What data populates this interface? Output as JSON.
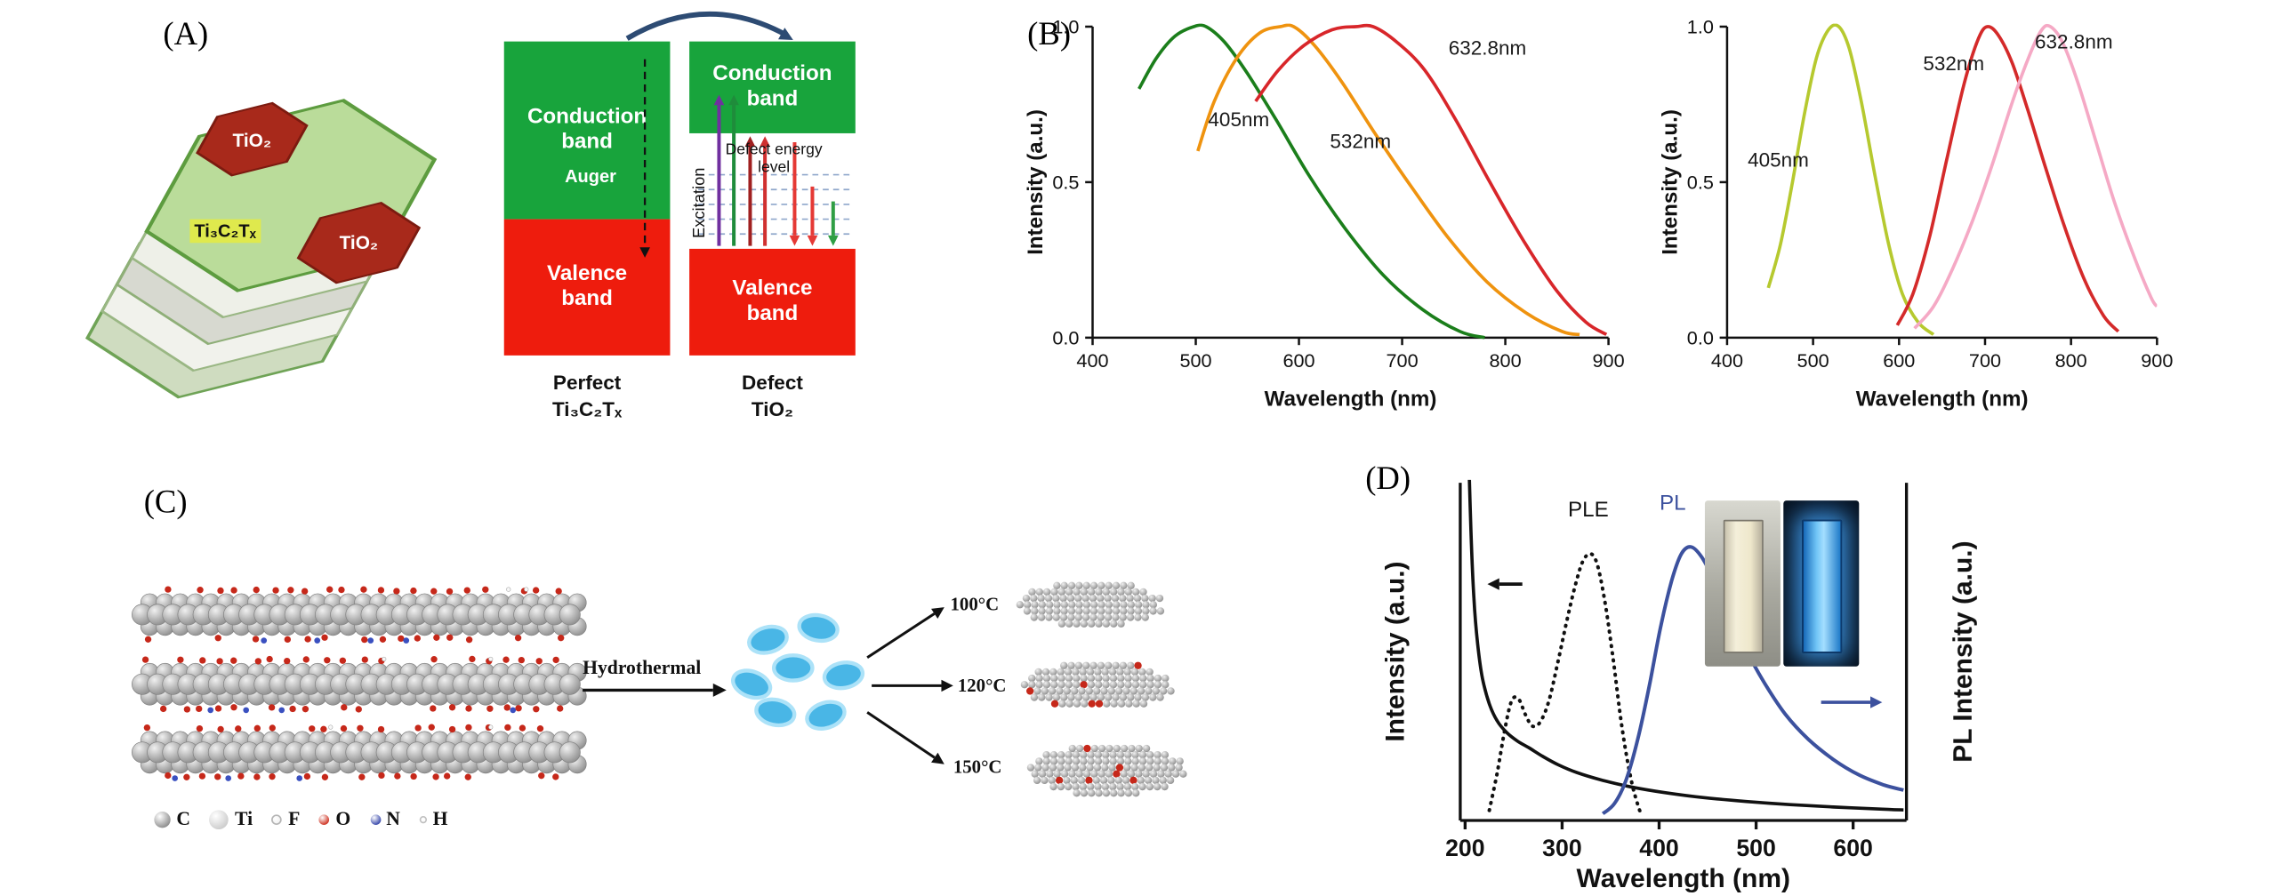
{
  "panels": {
    "a": {
      "label": "(A)",
      "tio2_label": "TiO₂",
      "mxene_label": "Ti₃C₂Tₓ",
      "band": {
        "conduction": "Conduction band",
        "valence": "Valence band",
        "auger": "Auger",
        "excitation": "Excitation",
        "defect_level_line1": "Defect energy",
        "defect_level_line2": "level",
        "left_caption_line1": "Perfect",
        "left_caption_line2": "Ti₃C₂Tₓ",
        "right_caption_line1": "Defect",
        "right_caption_line2": "TiO₂",
        "colors": {
          "conduction_green": "#18a43c",
          "valence_red": "#ee1c0d"
        }
      }
    },
    "b": {
      "label": "(B)"
    },
    "c": {
      "label": "(C)",
      "hydrothermal_label": "Hydrothermal",
      "temperatures": [
        "100°C",
        "120°C",
        "150°C"
      ],
      "legend": [
        {
          "label": "C",
          "color": "#8f8f8f",
          "size": 11
        },
        {
          "label": "Ti",
          "color": "#cdcdcd",
          "size": 13
        },
        {
          "label": "F",
          "color": "#f2f2f2",
          "size": 7,
          "border": "#b5b5b5"
        },
        {
          "label": "O",
          "color": "#cf3322",
          "size": 7
        },
        {
          "label": "N",
          "color": "#3949ab",
          "size": 7
        },
        {
          "label": "H",
          "color": "#fbfbfb",
          "size": 5,
          "border": "#c0c0c0"
        }
      ]
    },
    "d": {
      "label": "(D)"
    }
  },
  "chart_data": [
    {
      "id": "pl-emission-left",
      "type": "line",
      "xlabel": "Wavelength (nm)",
      "ylabel": "Intensity (a.u.)",
      "xlim": [
        400,
        900
      ],
      "ylim": [
        0,
        1.0
      ],
      "xticks": [
        400,
        500,
        600,
        700,
        800,
        900
      ],
      "xtick_labels": [
        "400",
        "500",
        "600",
        "700",
        "800",
        "900"
      ],
      "yticks": [
        0,
        0.5,
        1.0
      ],
      "ytick_labels": [
        "0.0",
        "0.5",
        "1.0"
      ],
      "grid": false,
      "legend_position": "none",
      "series": [
        {
          "name": "405nm",
          "color": "#1b7e1b",
          "x": [
            445,
            462,
            480,
            498,
            510,
            528,
            550,
            578,
            610,
            645,
            682,
            720,
            756,
            780
          ],
          "y": [
            0.8,
            0.9,
            0.97,
            1.0,
            1.0,
            0.95,
            0.85,
            0.7,
            0.52,
            0.35,
            0.2,
            0.09,
            0.02,
            0.0
          ]
        },
        {
          "name": "532nm",
          "color": "#ef930f",
          "x": [
            502,
            518,
            540,
            562,
            582,
            595,
            615,
            642,
            675,
            710,
            745,
            782,
            820,
            855,
            872
          ],
          "y": [
            0.6,
            0.76,
            0.9,
            0.98,
            1.0,
            1.0,
            0.94,
            0.82,
            0.65,
            0.48,
            0.32,
            0.18,
            0.08,
            0.02,
            0.01
          ]
        },
        {
          "name": "632.8nm",
          "color": "#d8262a",
          "x": [
            558,
            580,
            605,
            632,
            655,
            672,
            695,
            722,
            752,
            785,
            818,
            850,
            878,
            898
          ],
          "y": [
            0.76,
            0.86,
            0.94,
            0.99,
            1.0,
            1.0,
            0.95,
            0.86,
            0.7,
            0.5,
            0.31,
            0.15,
            0.05,
            0.01
          ]
        }
      ],
      "annotations": [
        {
          "text": "405nm",
          "x": 512,
          "y": 0.68,
          "anchor": "start",
          "color": "#1a1a1a"
        },
        {
          "text": "532nm",
          "x": 630,
          "y": 0.61,
          "anchor": "start",
          "color": "#1a1a1a"
        },
        {
          "text": "632.8nm",
          "x": 745,
          "y": 0.91,
          "anchor": "start",
          "color": "#1a1a1a"
        }
      ]
    },
    {
      "id": "pl-emission-right",
      "type": "line",
      "xlabel": "Wavelength (nm)",
      "ylabel": "Intensity (a.u.)",
      "xlim": [
        400,
        900
      ],
      "ylim": [
        0,
        1.0
      ],
      "xticks": [
        400,
        500,
        600,
        700,
        800,
        900
      ],
      "xtick_labels": [
        "400",
        "500",
        "600",
        "700",
        "800",
        "900"
      ],
      "yticks": [
        0,
        0.5,
        1.0
      ],
      "ytick_labels": [
        "0.0",
        "0.5",
        "1.0"
      ],
      "grid": false,
      "legend_position": "none",
      "series": [
        {
          "name": "405nm",
          "color": "#b6c92f",
          "x": [
            448,
            462,
            476,
            490,
            504,
            518,
            530,
            542,
            556,
            572,
            588,
            604,
            622,
            640
          ],
          "y": [
            0.16,
            0.3,
            0.5,
            0.72,
            0.9,
            0.99,
            1.0,
            0.93,
            0.76,
            0.52,
            0.3,
            0.14,
            0.05,
            0.01
          ]
        },
        {
          "name": "532nm",
          "color": "#d42a2a",
          "x": [
            598,
            616,
            636,
            656,
            676,
            692,
            703,
            716,
            732,
            750,
            770,
            792,
            815,
            838,
            855
          ],
          "y": [
            0.04,
            0.14,
            0.33,
            0.58,
            0.82,
            0.96,
            1.0,
            0.97,
            0.88,
            0.73,
            0.55,
            0.36,
            0.19,
            0.07,
            0.02
          ]
        },
        {
          "name": "632.8nm",
          "color": "#f5a9c5",
          "x": [
            618,
            640,
            662,
            686,
            710,
            732,
            752,
            766,
            776,
            790,
            808,
            828,
            850,
            872,
            893,
            900
          ],
          "y": [
            0.03,
            0.1,
            0.22,
            0.38,
            0.57,
            0.76,
            0.91,
            0.99,
            1.0,
            0.95,
            0.82,
            0.64,
            0.44,
            0.27,
            0.13,
            0.1
          ]
        }
      ],
      "annotations": [
        {
          "text": "405nm",
          "x": 424,
          "y": 0.55,
          "anchor": "start",
          "color": "#1a1a1a"
        },
        {
          "text": "532nm",
          "x": 628,
          "y": 0.86,
          "anchor": "start",
          "color": "#1a1a1a"
        },
        {
          "text": "632.8nm",
          "x": 758,
          "y": 0.93,
          "anchor": "start",
          "color": "#1a1a1a"
        }
      ]
    },
    {
      "id": "uvvis-ple-pl",
      "type": "line",
      "xlabel": "Wavelength (nm)",
      "ylabel": "Intensity (a.u.)",
      "ylabel_right": "PL Intensity (a.u.)",
      "xlim": [
        195,
        655
      ],
      "ylim": [
        0,
        1.0
      ],
      "xticks": [
        200,
        300,
        400,
        500,
        600
      ],
      "xtick_labels": [
        "200",
        "300",
        "400",
        "500",
        "600"
      ],
      "yticks": [],
      "ytick_labels": [],
      "grid": false,
      "legend_position": "none",
      "series": [
        {
          "name": "absorption",
          "color": "#111111",
          "width": 2.2,
          "x": [
            204,
            206,
            209,
            213,
            218,
            225,
            233,
            243,
            254,
            266,
            280,
            296,
            315,
            340,
            370,
            405,
            445,
            490,
            535,
            580,
            625,
            652
          ],
          "y": [
            1.05,
            0.86,
            0.66,
            0.52,
            0.42,
            0.345,
            0.295,
            0.26,
            0.235,
            0.215,
            0.19,
            0.165,
            0.142,
            0.12,
            0.1,
            0.083,
            0.068,
            0.056,
            0.047,
            0.04,
            0.034,
            0.031
          ]
        },
        {
          "name": "PLE",
          "color": "#111111",
          "style": "dotted",
          "width": 2.4,
          "x": [
            225,
            233,
            241,
            248,
            255,
            262,
            269,
            277,
            286,
            295,
            304,
            313,
            321,
            329,
            336,
            344,
            353,
            362,
            372,
            381
          ],
          "y": [
            0.03,
            0.14,
            0.27,
            0.355,
            0.36,
            0.315,
            0.28,
            0.29,
            0.35,
            0.46,
            0.58,
            0.69,
            0.765,
            0.79,
            0.76,
            0.65,
            0.47,
            0.27,
            0.11,
            0.02
          ]
        },
        {
          "name": "PL",
          "color": "#3c519e",
          "width": 2.4,
          "x": [
            342,
            354,
            366,
            378,
            390,
            402,
            413,
            423,
            433,
            444,
            457,
            472,
            489,
            508,
            530,
            554,
            580,
            606,
            632,
            652
          ],
          "y": [
            0.02,
            0.05,
            0.12,
            0.24,
            0.4,
            0.58,
            0.71,
            0.79,
            0.81,
            0.78,
            0.71,
            0.62,
            0.51,
            0.41,
            0.315,
            0.24,
            0.18,
            0.135,
            0.105,
            0.09
          ]
        }
      ],
      "annotations": [
        {
          "text": "PLE",
          "x": 327,
          "y": 0.9,
          "anchor": "middle",
          "color": "#111111"
        },
        {
          "text": "PL",
          "x": 414,
          "y": 0.92,
          "anchor": "middle",
          "color": "#3c519e"
        }
      ],
      "arrows": [
        {
          "x1": 259,
          "y1": 0.7,
          "x2": 223,
          "y2": 0.7,
          "color": "#111111"
        },
        {
          "x1": 567,
          "y1": 0.35,
          "x2": 630,
          "y2": 0.35,
          "color": "#3c519e"
        }
      ]
    }
  ]
}
